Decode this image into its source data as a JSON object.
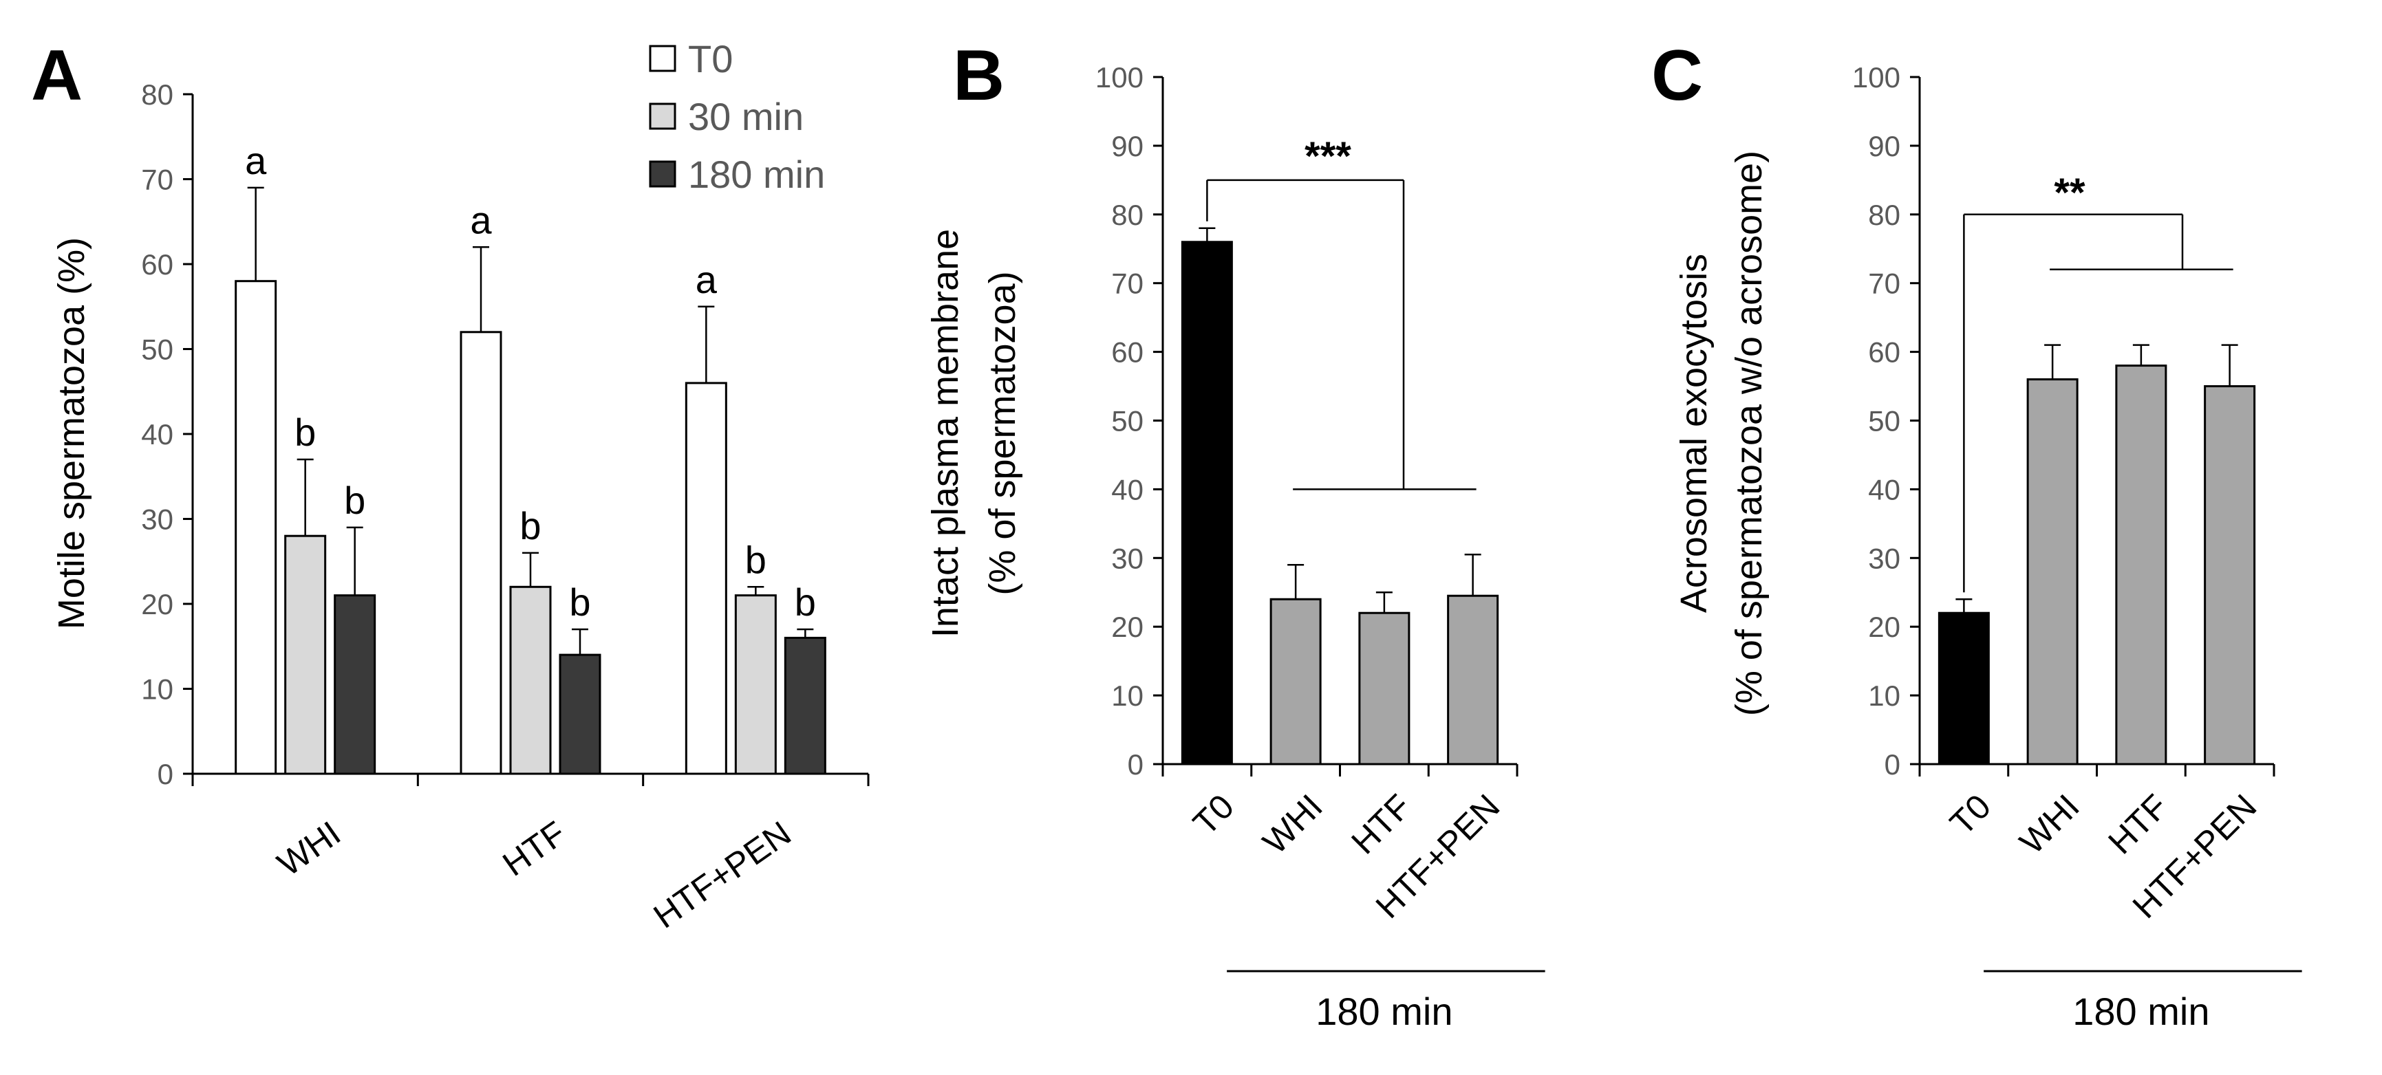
{
  "chart_data": [
    {
      "panel": "A",
      "type": "bar",
      "ylabel": "Motile spermatozoa (%)",
      "ylim": [
        0,
        80
      ],
      "yticks": [
        0,
        10,
        20,
        30,
        40,
        50,
        60,
        70,
        80
      ],
      "categories": [
        "WHI",
        "HTF",
        "HTF+PEN"
      ],
      "series": [
        {
          "name": "T0",
          "color": "#ffffff",
          "values": [
            58,
            52,
            46
          ],
          "errors": [
            11,
            10,
            9
          ],
          "labels": [
            "a",
            "a",
            "a"
          ]
        },
        {
          "name": "30 min",
          "color": "#d9d9d9",
          "values": [
            28,
            22,
            21
          ],
          "errors": [
            9,
            4,
            1
          ],
          "labels": [
            "b",
            "b",
            "b"
          ]
        },
        {
          "name": "180 min",
          "color": "#3a3a3a",
          "values": [
            21,
            14,
            16
          ],
          "errors": [
            8,
            3,
            1
          ],
          "labels": [
            "b",
            "b",
            "b"
          ]
        }
      ],
      "legend": [
        "T0",
        "30 min",
        "180 min"
      ]
    },
    {
      "panel": "B",
      "type": "bar",
      "ylabel_line1": "Intact plasma membrane",
      "ylabel_line2": "(% of spermatozoa)",
      "ylim": [
        0,
        100
      ],
      "yticks": [
        0,
        10,
        20,
        30,
        40,
        50,
        60,
        70,
        80,
        90,
        100
      ],
      "categories": [
        "T0",
        "WHI",
        "HTF",
        "HTF+PEN"
      ],
      "values": [
        76,
        24,
        22,
        24.5
      ],
      "errors": [
        2,
        5,
        3,
        6
      ],
      "colors": [
        "#000000",
        "#a6a6a6",
        "#a6a6a6",
        "#a6a6a6"
      ],
      "significance": "***",
      "group_label": "180 min"
    },
    {
      "panel": "C",
      "type": "bar",
      "ylabel_line1": "Acrosomal exocytosis",
      "ylabel_line2": "(% of spermatozoa w/o acrosome)",
      "ylim": [
        0,
        100
      ],
      "yticks": [
        0,
        10,
        20,
        30,
        40,
        50,
        60,
        70,
        80,
        90,
        100
      ],
      "categories": [
        "T0",
        "WHI",
        "HTF",
        "HTF+PEN"
      ],
      "values": [
        22,
        56,
        58,
        55
      ],
      "errors": [
        2,
        5,
        3,
        6
      ],
      "colors": [
        "#000000",
        "#a6a6a6",
        "#a6a6a6",
        "#a6a6a6"
      ],
      "significance": "**",
      "group_label": "180 min"
    }
  ]
}
